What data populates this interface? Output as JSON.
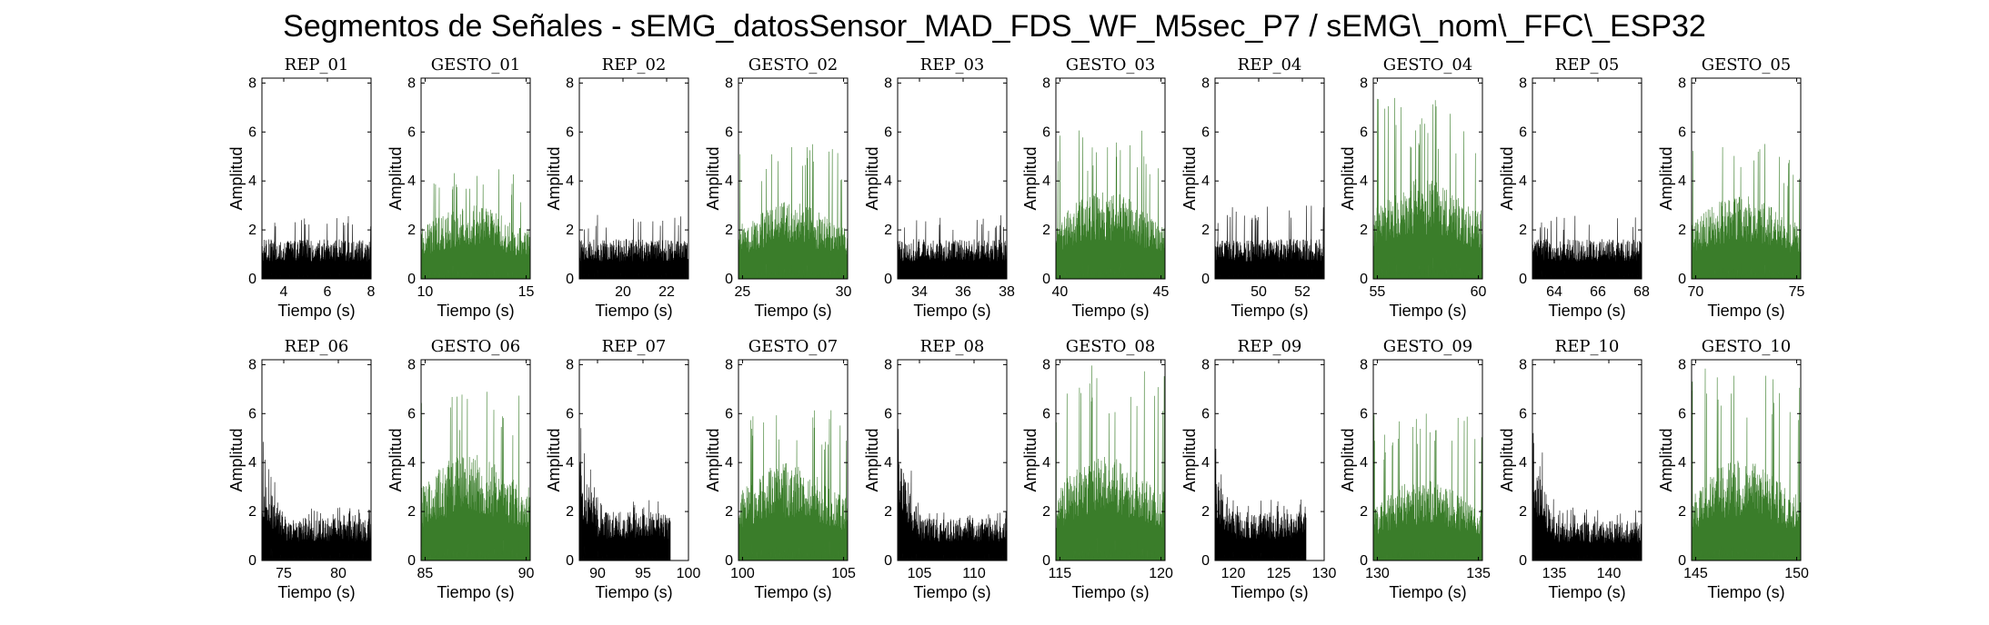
{
  "figure": {
    "title": "Segmentos de Señales - sEMG_datosSensor_MAD_FDS_WF_M5sec_P7 / sEMG\\_nom\\_FFC\\_ESP32"
  },
  "colors": {
    "rep": "#000000",
    "gesto": "#3a7d2a",
    "axis": "#000000",
    "background": "#ffffff"
  },
  "chart_data": [
    {
      "type": "area",
      "title": "REP_01",
      "kind": "rep",
      "xlim": [
        3,
        8
      ],
      "xticks": [
        4,
        6,
        8
      ],
      "ylim": [
        0,
        8.2
      ],
      "yticks": [
        0,
        2,
        4,
        6,
        8
      ],
      "data_x": [
        3,
        8
      ],
      "base_amplitude": 1.3,
      "peak_amplitude": 2.6,
      "burst_amplitude": null,
      "xlabel": "Tiempo (s)",
      "ylabel": "Amplitud"
    },
    {
      "type": "area",
      "title": "GESTO_01",
      "kind": "gesto",
      "xlim": [
        9.8,
        15.2
      ],
      "xticks": [
        10,
        15
      ],
      "ylim": [
        0,
        8.2
      ],
      "yticks": [
        0,
        2,
        4,
        6,
        8
      ],
      "data_x": [
        9.8,
        15.2
      ],
      "base_amplitude": 2.2,
      "peak_amplitude": 4.5,
      "burst_amplitude": null,
      "xlabel": "Tiempo (s)",
      "ylabel": "Amplitud"
    },
    {
      "type": "area",
      "title": "REP_02",
      "kind": "rep",
      "xlim": [
        18,
        23
      ],
      "xticks": [
        20,
        22
      ],
      "ylim": [
        0,
        8.2
      ],
      "yticks": [
        0,
        2,
        4,
        6,
        8
      ],
      "data_x": [
        18,
        23
      ],
      "base_amplitude": 1.3,
      "peak_amplitude": 2.7,
      "burst_amplitude": null,
      "xlabel": "Tiempo (s)",
      "ylabel": "Amplitud"
    },
    {
      "type": "area",
      "title": "GESTO_02",
      "kind": "gesto",
      "xlim": [
        24.8,
        30.2
      ],
      "xticks": [
        25,
        30
      ],
      "ylim": [
        0,
        8.2
      ],
      "yticks": [
        0,
        2,
        4,
        6,
        8
      ],
      "data_x": [
        24.8,
        30.2
      ],
      "base_amplitude": 2.3,
      "peak_amplitude": 5.7,
      "burst_amplitude": null,
      "xlabel": "Tiempo (s)",
      "ylabel": "Amplitud"
    },
    {
      "type": "area",
      "title": "REP_03",
      "kind": "rep",
      "xlim": [
        33,
        38
      ],
      "xticks": [
        34,
        36,
        38
      ],
      "ylim": [
        0,
        8.2
      ],
      "yticks": [
        0,
        2,
        4,
        6,
        8
      ],
      "data_x": [
        33,
        38
      ],
      "base_amplitude": 1.3,
      "peak_amplitude": 2.6,
      "burst_amplitude": null,
      "xlabel": "Tiempo (s)",
      "ylabel": "Amplitud"
    },
    {
      "type": "area",
      "title": "GESTO_03",
      "kind": "gesto",
      "xlim": [
        39.8,
        45.2
      ],
      "xticks": [
        40,
        45
      ],
      "ylim": [
        0,
        8.2
      ],
      "yticks": [
        0,
        2,
        4,
        6,
        8
      ],
      "data_x": [
        39.8,
        45.2
      ],
      "base_amplitude": 2.6,
      "peak_amplitude": 6.1,
      "burst_amplitude": null,
      "xlabel": "Tiempo (s)",
      "ylabel": "Amplitud"
    },
    {
      "type": "area",
      "title": "REP_04",
      "kind": "rep",
      "xlim": [
        48,
        53
      ],
      "xticks": [
        50,
        52
      ],
      "ylim": [
        0,
        8.2
      ],
      "yticks": [
        0,
        2,
        4,
        6,
        8
      ],
      "data_x": [
        48,
        53
      ],
      "base_amplitude": 1.3,
      "peak_amplitude": 3.0,
      "burst_amplitude": null,
      "xlabel": "Tiempo (s)",
      "ylabel": "Amplitud"
    },
    {
      "type": "area",
      "title": "GESTO_04",
      "kind": "gesto",
      "xlim": [
        54.8,
        60.2
      ],
      "xticks": [
        55,
        60
      ],
      "ylim": [
        0,
        8.2
      ],
      "yticks": [
        0,
        2,
        4,
        6,
        8
      ],
      "data_x": [
        54.8,
        60.2
      ],
      "base_amplitude": 3.0,
      "peak_amplitude": 7.4,
      "burst_amplitude": null,
      "xlabel": "Tiempo (s)",
      "ylabel": "Amplitud"
    },
    {
      "type": "area",
      "title": "REP_05",
      "kind": "rep",
      "xlim": [
        63,
        68
      ],
      "xticks": [
        64,
        66,
        68
      ],
      "ylim": [
        0,
        8.2
      ],
      "yticks": [
        0,
        2,
        4,
        6,
        8
      ],
      "data_x": [
        63,
        68
      ],
      "base_amplitude": 1.3,
      "peak_amplitude": 2.6,
      "burst_amplitude": null,
      "xlabel": "Tiempo (s)",
      "ylabel": "Amplitud"
    },
    {
      "type": "area",
      "title": "GESTO_05",
      "kind": "gesto",
      "xlim": [
        69.8,
        75.2
      ],
      "xticks": [
        70,
        75
      ],
      "ylim": [
        0,
        8.2
      ],
      "yticks": [
        0,
        2,
        4,
        6,
        8
      ],
      "data_x": [
        69.8,
        75.2
      ],
      "base_amplitude": 2.5,
      "peak_amplitude": 5.6,
      "burst_amplitude": null,
      "xlabel": "Tiempo (s)",
      "ylabel": "Amplitud"
    },
    {
      "type": "area",
      "title": "REP_06",
      "kind": "rep",
      "xlim": [
        73,
        83
      ],
      "xticks": [
        75,
        80
      ],
      "ylim": [
        0,
        8.2
      ],
      "yticks": [
        0,
        2,
        4,
        6,
        8
      ],
      "data_x": [
        73,
        83
      ],
      "base_amplitude": 1.4,
      "peak_amplitude": 2.2,
      "burst_amplitude": 5.2,
      "xlabel": "Tiempo (s)",
      "ylabel": "Amplitud"
    },
    {
      "type": "area",
      "title": "GESTO_06",
      "kind": "gesto",
      "xlim": [
        84.8,
        90.2
      ],
      "xticks": [
        85,
        90
      ],
      "ylim": [
        0,
        8.2
      ],
      "yticks": [
        0,
        2,
        4,
        6,
        8
      ],
      "data_x": [
        84.8,
        90.2
      ],
      "base_amplitude": 3.2,
      "peak_amplitude": 7.2,
      "burst_amplitude": null,
      "xlabel": "Tiempo (s)",
      "ylabel": "Amplitud"
    },
    {
      "type": "area",
      "title": "REP_07",
      "kind": "rep",
      "xlim": [
        88,
        100
      ],
      "xticks": [
        90,
        95,
        100
      ],
      "ylim": [
        0,
        8.2
      ],
      "yticks": [
        0,
        2,
        4,
        6,
        8
      ],
      "data_x": [
        88,
        98
      ],
      "base_amplitude": 1.6,
      "peak_amplitude": 2.5,
      "burst_amplitude": 6.0,
      "xlabel": "Tiempo (s)",
      "ylabel": "Amplitud"
    },
    {
      "type": "area",
      "title": "GESTO_07",
      "kind": "gesto",
      "xlim": [
        99.8,
        105.2
      ],
      "xticks": [
        100,
        105
      ],
      "ylim": [
        0,
        8.2
      ],
      "yticks": [
        0,
        2,
        4,
        6,
        8
      ],
      "data_x": [
        99.8,
        105.2
      ],
      "base_amplitude": 2.9,
      "peak_amplitude": 6.3,
      "burst_amplitude": null,
      "xlabel": "Tiempo (s)",
      "ylabel": "Amplitud"
    },
    {
      "type": "area",
      "title": "REP_08",
      "kind": "rep",
      "xlim": [
        103,
        113
      ],
      "xticks": [
        105,
        110
      ],
      "ylim": [
        0,
        8.2
      ],
      "yticks": [
        0,
        2,
        4,
        6,
        8
      ],
      "data_x": [
        103,
        113
      ],
      "base_amplitude": 1.4,
      "peak_amplitude": 2.0,
      "burst_amplitude": 6.3,
      "xlabel": "Tiempo (s)",
      "ylabel": "Amplitud"
    },
    {
      "type": "area",
      "title": "GESTO_08",
      "kind": "gesto",
      "xlim": [
        114.8,
        120.2
      ],
      "xticks": [
        115,
        120
      ],
      "ylim": [
        0,
        8.2
      ],
      "yticks": [
        0,
        2,
        4,
        6,
        8
      ],
      "data_x": [
        114.8,
        120.2
      ],
      "base_amplitude": 3.1,
      "peak_amplitude": 8.0,
      "burst_amplitude": null,
      "xlabel": "Tiempo (s)",
      "ylabel": "Amplitud"
    },
    {
      "type": "area",
      "title": "REP_09",
      "kind": "rep",
      "xlim": [
        118,
        130
      ],
      "xticks": [
        120,
        125,
        130
      ],
      "ylim": [
        0,
        8.2
      ],
      "yticks": [
        0,
        2,
        4,
        6,
        8
      ],
      "data_x": [
        118,
        128
      ],
      "base_amplitude": 1.6,
      "peak_amplitude": 2.5,
      "burst_amplitude": 5.3,
      "xlabel": "Tiempo (s)",
      "ylabel": "Amplitud"
    },
    {
      "type": "area",
      "title": "GESTO_09",
      "kind": "gesto",
      "xlim": [
        129.8,
        135.2
      ],
      "xticks": [
        130,
        135
      ],
      "ylim": [
        0,
        8.2
      ],
      "yticks": [
        0,
        2,
        4,
        6,
        8
      ],
      "data_x": [
        129.8,
        135.2
      ],
      "base_amplitude": 2.4,
      "peak_amplitude": 6.0,
      "burst_amplitude": null,
      "xlabel": "Tiempo (s)",
      "ylabel": "Amplitud"
    },
    {
      "type": "area",
      "title": "REP_10",
      "kind": "rep",
      "xlim": [
        133,
        143
      ],
      "xticks": [
        135,
        140
      ],
      "ylim": [
        0,
        8.2
      ],
      "yticks": [
        0,
        2,
        4,
        6,
        8
      ],
      "data_x": [
        133,
        143
      ],
      "base_amplitude": 1.3,
      "peak_amplitude": 2.2,
      "burst_amplitude": 6.0,
      "xlabel": "Tiempo (s)",
      "ylabel": "Amplitud"
    },
    {
      "type": "area",
      "title": "GESTO_10",
      "kind": "gesto",
      "xlim": [
        144.8,
        150.2
      ],
      "xticks": [
        145,
        150
      ],
      "ylim": [
        0,
        8.2
      ],
      "yticks": [
        0,
        2,
        4,
        6,
        8
      ],
      "data_x": [
        144.8,
        150.2
      ],
      "base_amplitude": 3.0,
      "peak_amplitude": 7.9,
      "burst_amplitude": null,
      "xlabel": "Tiempo (s)",
      "ylabel": "Amplitud"
    }
  ]
}
